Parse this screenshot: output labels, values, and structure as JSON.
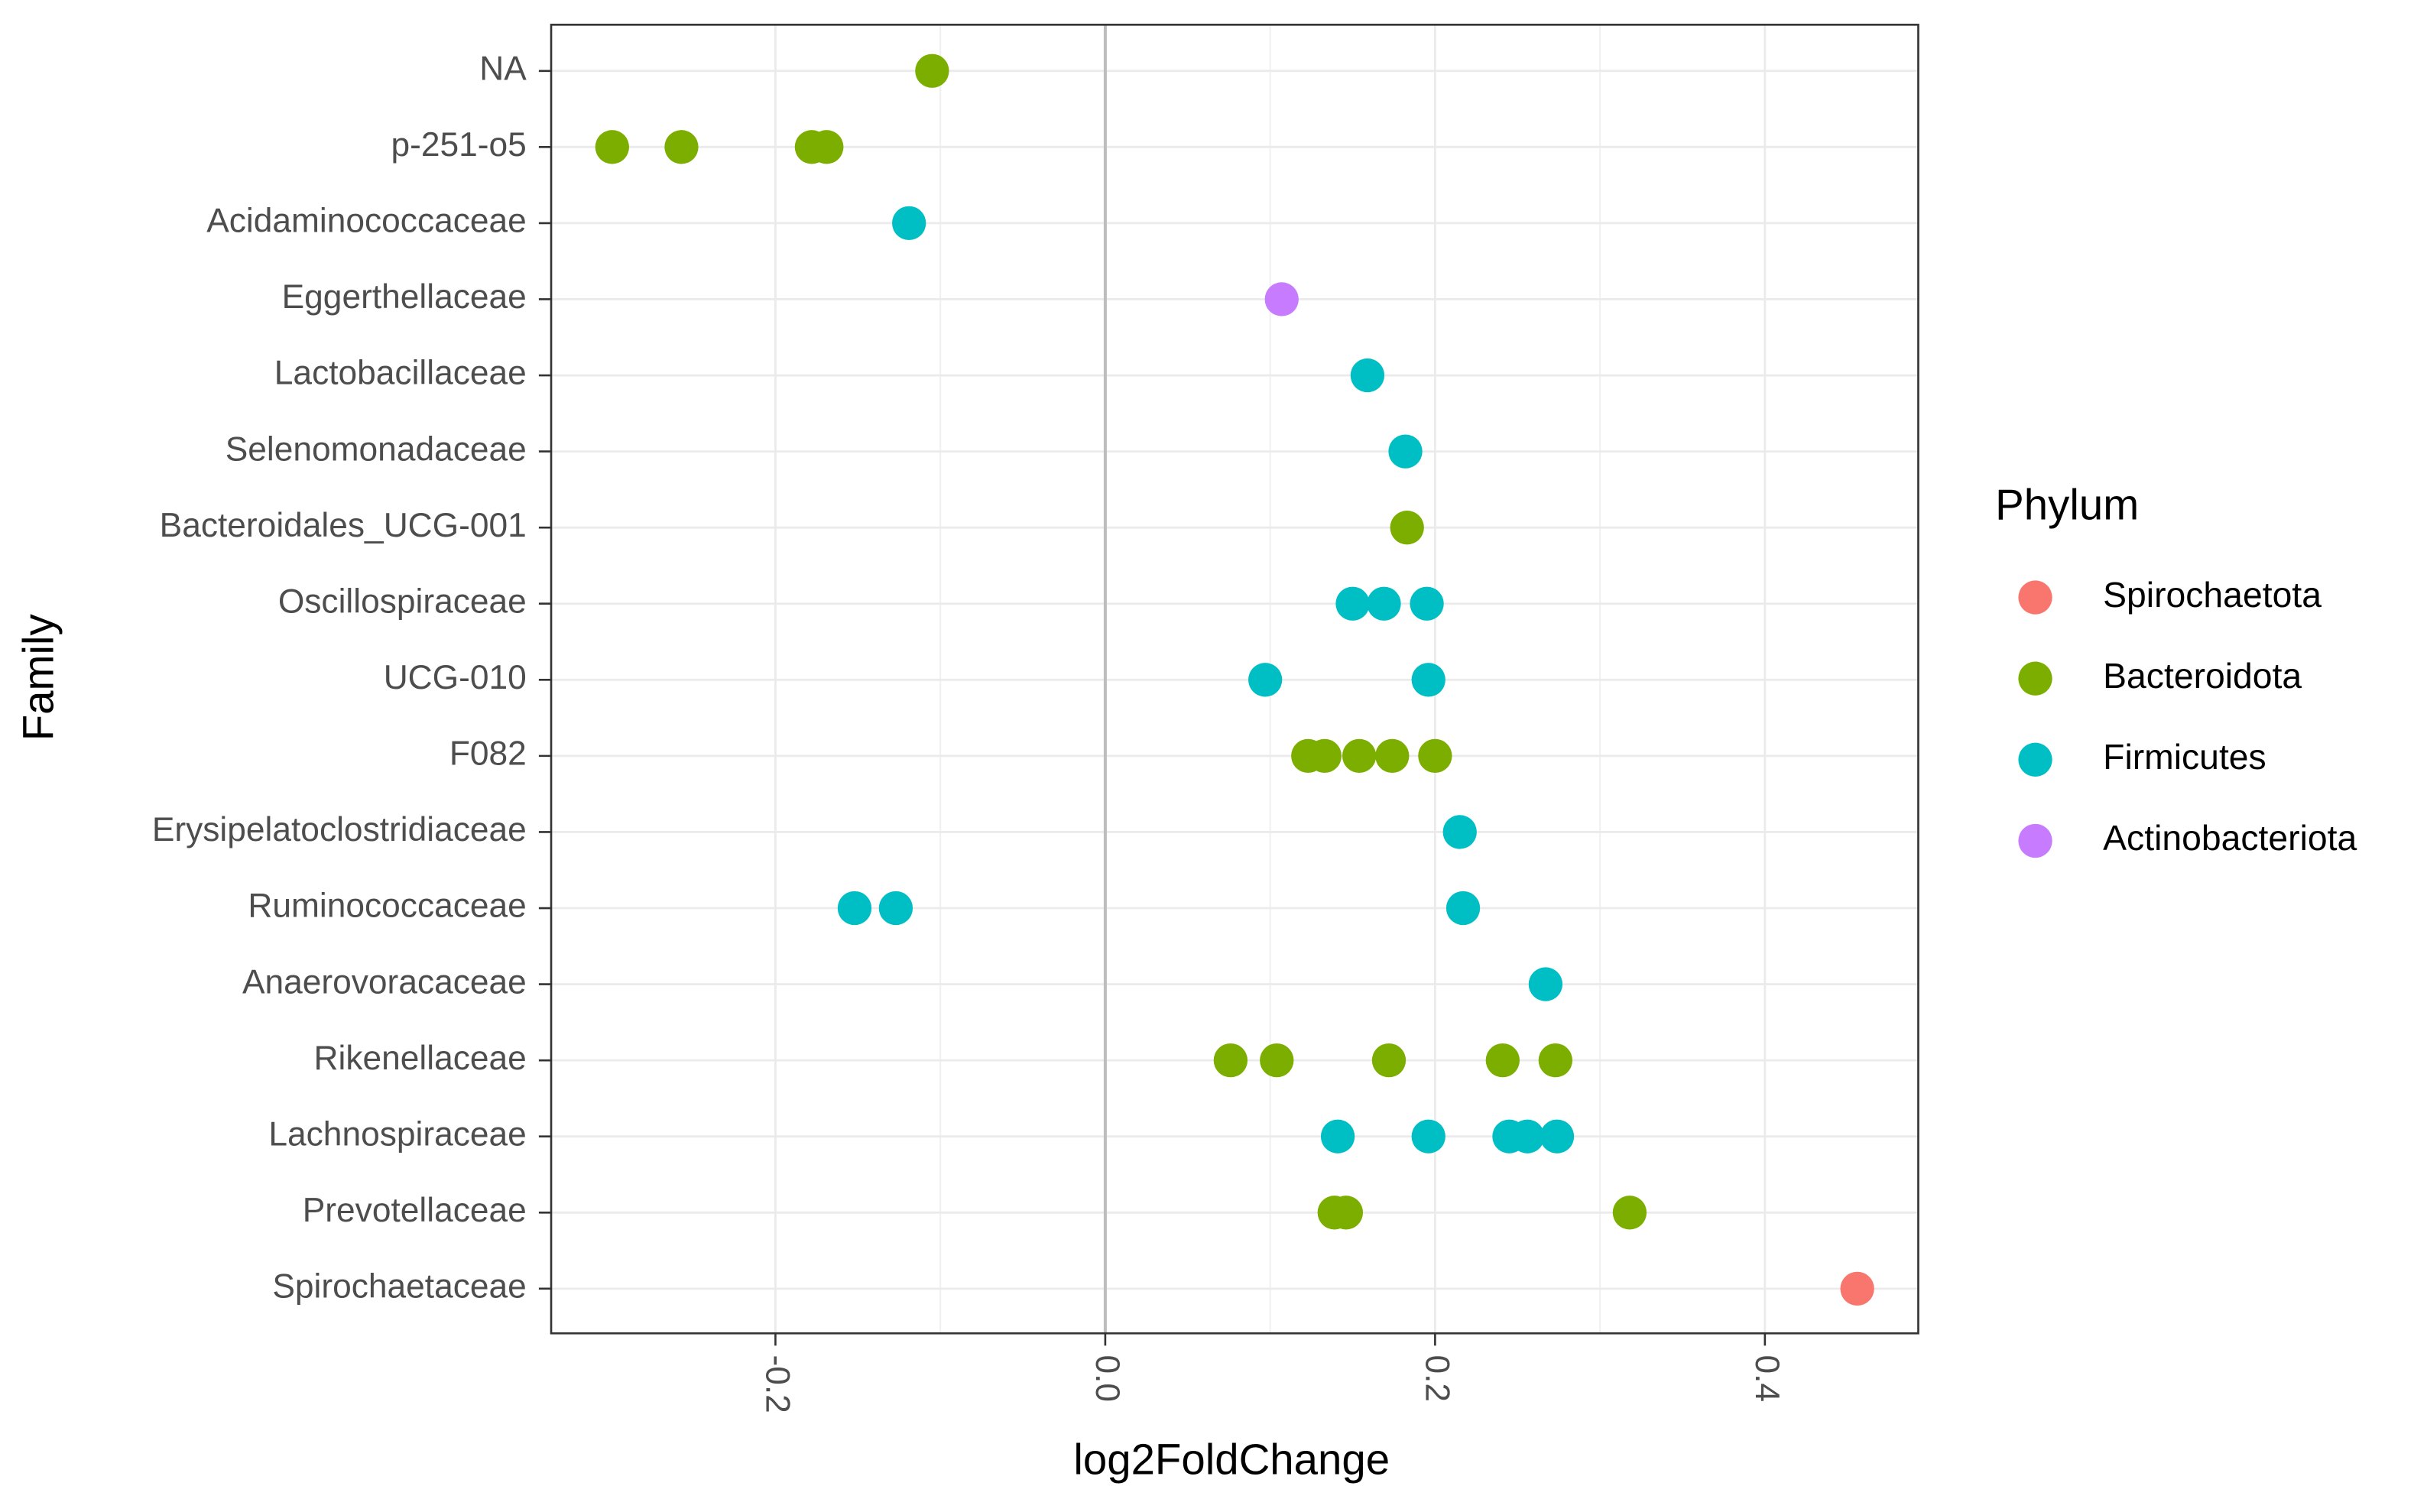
{
  "chart_data": {
    "type": "scatter",
    "x_label": "log2FoldChange",
    "y_label": "Family",
    "legend_title": "Phylum",
    "legend_position": "right",
    "grid": true,
    "xlim": [
      -0.336,
      0.493
    ],
    "xticks": [
      -0.2,
      {
        "value": 0,
        "label": "0.0"
      },
      0.2,
      0.4
    ],
    "categories": [
      "NA",
      "p-251-o5",
      "Acidaminococcaceae",
      "Eggerthellaceae",
      "Lactobacillaceae",
      "Selenomonadaceae",
      "Bacteroidales_UCG-001",
      "Oscillospiraceae",
      "UCG-010",
      "F082",
      "Erysipelatoclostridiaceae",
      "Ruminococcaceae",
      "Anaerovoracaceae",
      "Rikenellaceae",
      "Lachnospiraceae",
      "Prevotellaceae",
      "Spirochaetaceae"
    ],
    "series": [
      {
        "name": "Spirochaetota",
        "color": "#F8766D",
        "categories": [
          "Spirochaetaceae"
        ],
        "values": [
          0.456
        ]
      },
      {
        "name": "Bacteroidota",
        "color": "#7CAE00",
        "categories": [
          "NA",
          "p-251-o5",
          "p-251-o5",
          "p-251-o5",
          "p-251-o5",
          "Bacteroidales_UCG-001",
          "F082",
          "F082",
          "F082",
          "F082",
          "F082",
          "Rikenellaceae",
          "Rikenellaceae",
          "Rikenellaceae",
          "Rikenellaceae",
          "Rikenellaceae",
          "Prevotellaceae",
          "Prevotellaceae",
          "Prevotellaceae"
        ],
        "values": [
          -0.105,
          -0.299,
          -0.257,
          -0.178,
          -0.169,
          0.183,
          0.123,
          0.133,
          0.154,
          0.174,
          0.2,
          0.076,
          0.104,
          0.172,
          0.241,
          0.273,
          0.139,
          0.146,
          0.318
        ]
      },
      {
        "name": "Firmicutes",
        "color": "#00BFC4",
        "categories": [
          "Acidaminococcaceae",
          "Lactobacillaceae",
          "Selenomonadaceae",
          "Oscillospiraceae",
          "Oscillospiraceae",
          "Oscillospiraceae",
          "UCG-010",
          "UCG-010",
          "Erysipelatoclostridiaceae",
          "Ruminococcaceae",
          "Ruminococcaceae",
          "Ruminococcaceae",
          "Anaerovoracaceae",
          "Lachnospiraceae",
          "Lachnospiraceae",
          "Lachnospiraceae",
          "Lachnospiraceae",
          "Lachnospiraceae"
        ],
        "values": [
          -0.119,
          0.159,
          0.182,
          0.15,
          0.169,
          0.195,
          0.097,
          0.196,
          0.215,
          -0.152,
          -0.127,
          0.217,
          0.267,
          0.141,
          0.196,
          0.245,
          0.256,
          0.274
        ]
      },
      {
        "name": "Actinobacteriota",
        "color": "#C77CFF",
        "categories": [
          "Eggerthellaceae"
        ],
        "values": [
          0.107
        ]
      }
    ]
  }
}
